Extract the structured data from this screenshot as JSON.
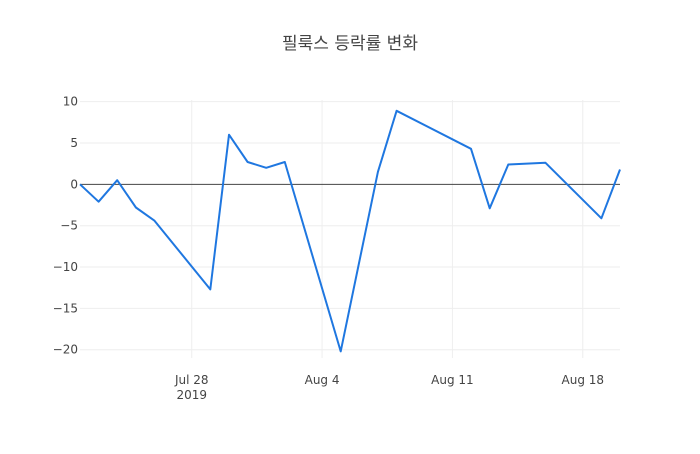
{
  "chart_data": {
    "type": "line",
    "title": "필룩스 등락률 변화",
    "xlabel": "",
    "ylabel": "",
    "x_ticks": [
      {
        "date": "2019-07-28",
        "label": "Jul 28",
        "sublabel": "2019"
      },
      {
        "date": "2019-08-04",
        "label": "Aug 4",
        "sublabel": ""
      },
      {
        "date": "2019-08-11",
        "label": "Aug 11",
        "sublabel": ""
      },
      {
        "date": "2019-08-18",
        "label": "Aug 18",
        "sublabel": ""
      }
    ],
    "y_ticks": [
      10,
      5,
      0,
      -5,
      -10,
      -15,
      -20
    ],
    "y_tick_labels": [
      "10",
      "5",
      "0",
      "−5",
      "−10",
      "−15",
      "−20"
    ],
    "xlim": [
      "2019-07-22",
      "2019-08-20"
    ],
    "ylim": [
      -21,
      10.2
    ],
    "grid": true,
    "zero_line": true,
    "series": [
      {
        "color": "#1f77e0",
        "points": [
          {
            "x": "2019-07-22",
            "y": 0.0
          },
          {
            "x": "2019-07-23",
            "y": -2.1
          },
          {
            "x": "2019-07-24",
            "y": 0.5
          },
          {
            "x": "2019-07-25",
            "y": -2.8
          },
          {
            "x": "2019-07-26",
            "y": -4.4
          },
          {
            "x": "2019-07-29",
            "y": -12.7
          },
          {
            "x": "2019-07-30",
            "y": 6.0
          },
          {
            "x": "2019-07-31",
            "y": 2.7
          },
          {
            "x": "2019-08-01",
            "y": 2.0
          },
          {
            "x": "2019-08-02",
            "y": 2.7
          },
          {
            "x": "2019-08-05",
            "y": -20.2
          },
          {
            "x": "2019-08-07",
            "y": 1.5
          },
          {
            "x": "2019-08-08",
            "y": 8.9
          },
          {
            "x": "2019-08-12",
            "y": 4.3
          },
          {
            "x": "2019-08-13",
            "y": -2.9
          },
          {
            "x": "2019-08-14",
            "y": 2.4
          },
          {
            "x": "2019-08-16",
            "y": 2.6
          },
          {
            "x": "2019-08-19",
            "y": -4.1
          },
          {
            "x": "2019-08-20",
            "y": 1.8
          }
        ]
      }
    ]
  }
}
